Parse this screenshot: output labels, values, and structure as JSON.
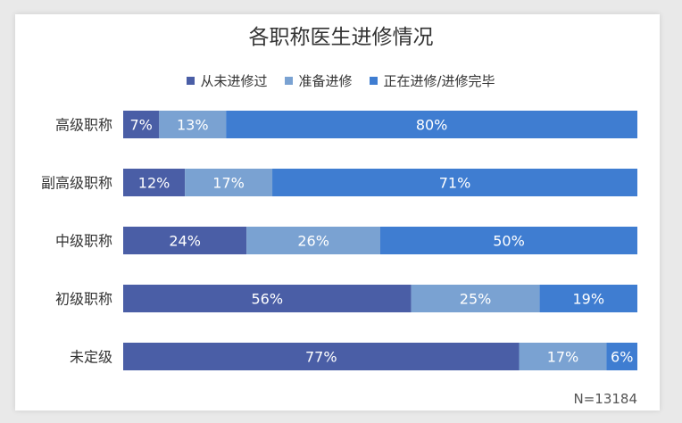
{
  "chart_data": {
    "type": "bar",
    "orientation": "horizontal",
    "stacked": true,
    "title": "各职称医生进修情况",
    "categories": [
      "高级职称",
      "副高级职称",
      "中级职称",
      "初级职称",
      "未定级"
    ],
    "series": [
      {
        "name": "从未进修过",
        "color": "#4a5ea6",
        "values": [
          7,
          12,
          24,
          56,
          77
        ]
      },
      {
        "name": "准备进修",
        "color": "#7aa2d2",
        "values": [
          13,
          17,
          26,
          25,
          17
        ]
      },
      {
        "name": "正在进修/进修完毕",
        "color": "#3f7dd1",
        "values": [
          80,
          71,
          50,
          19,
          6
        ]
      }
    ],
    "value_suffix": "%",
    "xlim": [
      0,
      100
    ],
    "legend_position": "top",
    "grid": false,
    "xlabel": "",
    "ylabel": ""
  },
  "footnote": "N=13184"
}
